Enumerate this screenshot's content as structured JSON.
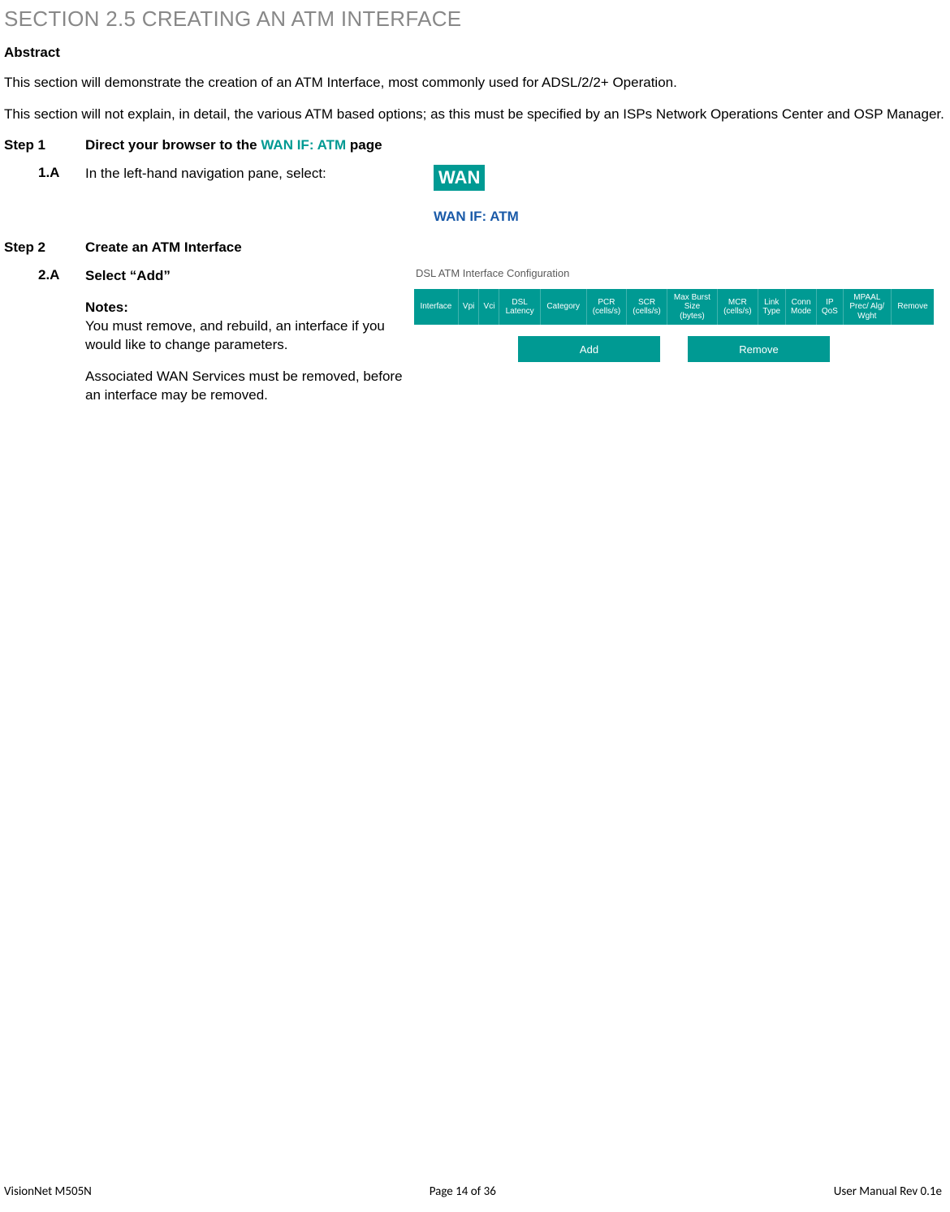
{
  "colors": {
    "teal": "#009a93",
    "blue": "#1a5aa8",
    "section_title": "#888888",
    "text": "#000000",
    "bg": "#ffffff"
  },
  "section_title": "SECTION 2.5   CREATING AN ATM INTERFACE",
  "abstract_label": "Abstract",
  "abstract_p1": "This section will demonstrate the creation of an ATM Interface, most commonly used for ADSL/2/2+ Operation.",
  "abstract_p2": "This section will not explain, in detail, the various ATM based options; as this must be specified by an ISPs Network Operations Center and OSP Manager.",
  "step1": {
    "label": "Step 1",
    "title_before": "Direct your browser to the ",
    "title_link": "WAN IF: ATM",
    "title_after": " page",
    "substep_label": "1.A",
    "substep_text": "In the left-hand navigation pane, select:",
    "wan_badge": "WAN",
    "wan_if_text": "WAN IF: ATM"
  },
  "step2": {
    "label": "Step 2",
    "title": "Create an ATM Interface",
    "substep_label": "2.A",
    "substep_title": "Select “Add”",
    "notes_label": "Notes:",
    "notes_p1": "You must remove, and rebuild, an interface if you would like to change parameters.",
    "notes_p2": "Associated WAN Services must be removed, before an interface may be removed."
  },
  "atm_panel": {
    "title": "DSL ATM Interface Configuration",
    "columns": [
      "Interface",
      "Vpi",
      "Vci",
      "DSL\nLatency",
      "Category",
      "PCR\n(cells/s)",
      "SCR\n(cells/s)",
      "Max Burst\nSize\n(bytes)",
      "MCR\n(cells/s)",
      "Link\nType",
      "Conn\nMode",
      "IP\nQoS",
      "MPAAL\nPrec/ Alg/\nWght",
      "Remove"
    ],
    "buttons": {
      "add": "Add",
      "remove": "Remove"
    }
  },
  "footer": {
    "left": "VisionNet   M505N",
    "center": "Page 14 of 36",
    "right": "User Manual Rev 0.1e"
  }
}
